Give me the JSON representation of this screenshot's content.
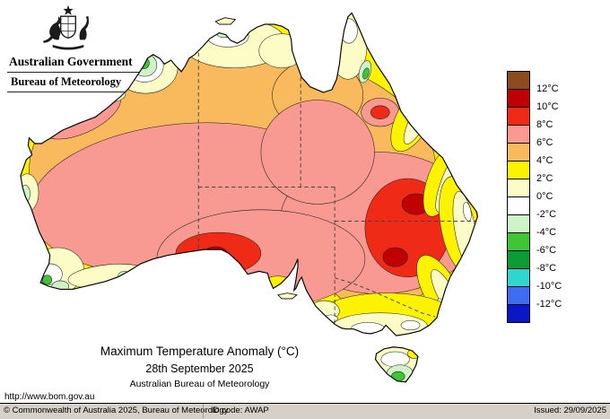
{
  "header": {
    "government": "Australian Government",
    "bureau": "Bureau of Meteorology"
  },
  "titles": {
    "line1": "Maximum Temperature Anomaly (°C)",
    "line2": "28th September 2025",
    "line3": "Australian Bureau of Meteorology"
  },
  "legend": {
    "colors": [
      "#8a4b1e",
      "#c00000",
      "#ef2a16",
      "#f89a91",
      "#f8ba5d",
      "#fdf200",
      "#fcfcc6",
      "#ffffff",
      "#cdf3c6",
      "#3fc535",
      "#0d9b38",
      "#30d5cf",
      "#3f6df2",
      "#0b16c4"
    ],
    "labels": [
      "12°C",
      "10°C",
      "8°C",
      "6°C",
      "4°C",
      "2°C",
      "0°C",
      "-2°C",
      "-4°C",
      "-6°C",
      "-8°C",
      "-10°C",
      "-12°C"
    ]
  },
  "footer": {
    "url": "http://www.bom.gov.au",
    "copyright": "© Commonwealth of Australia 2025, Bureau of Meteorology",
    "id_code": "ID code: AWAP",
    "issued": "Issued: 29/09/2025"
  }
}
